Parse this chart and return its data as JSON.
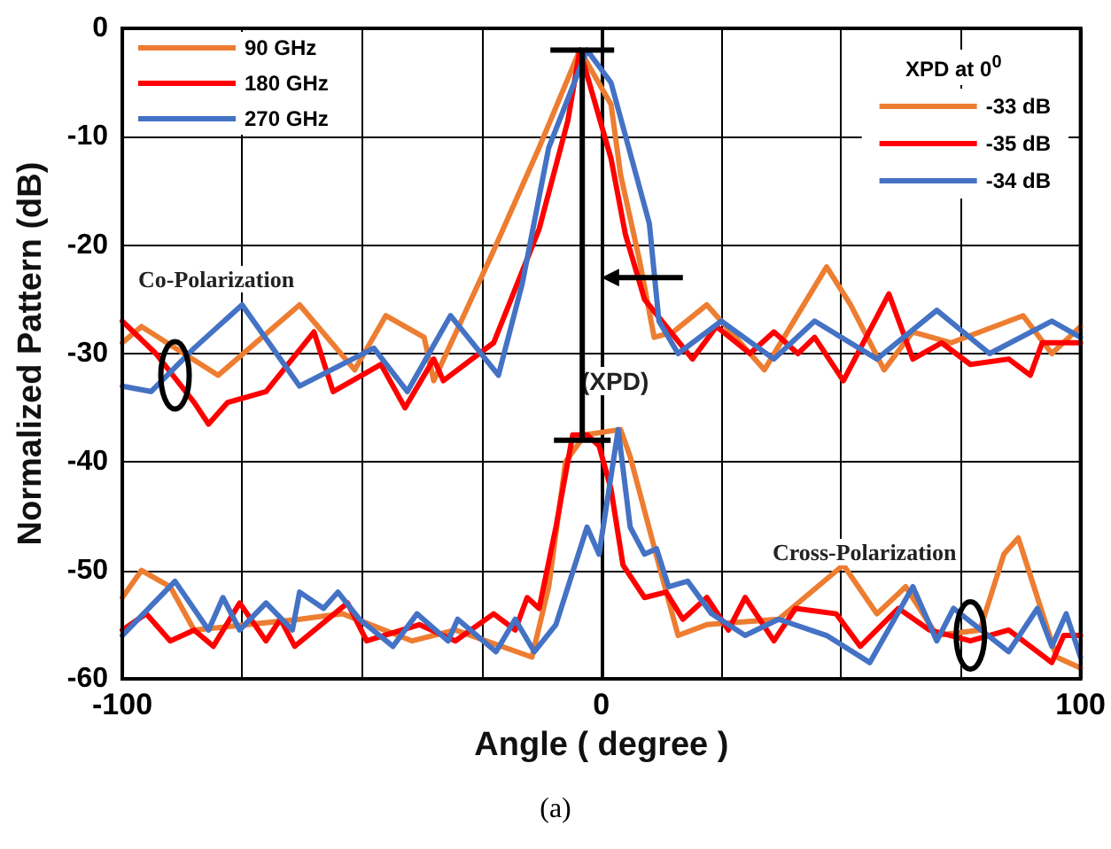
{
  "chart_data": {
    "type": "line",
    "xlabel": "Angle ( degree )",
    "ylabel": "Normalized Pattern (dB)",
    "xlim": [
      -100,
      100
    ],
    "xticks": [
      -100,
      {
        "value": -75,
        "label": null
      },
      {
        "value": -50,
        "label": null
      },
      {
        "value": -25,
        "label": null
      },
      0,
      {
        "value": 25,
        "label": null
      },
      {
        "value": 50,
        "label": null
      },
      {
        "value": 75,
        "label": null
      },
      100
    ],
    "ylim": [
      -60,
      0
    ],
    "yticks": [
      -60,
      -50,
      -40,
      -30,
      -20,
      -10,
      0
    ],
    "grid": true,
    "legend": "top left",
    "legend_title": "XPD at 0$^{0}$",
    "marker": "none",
    "line_style": "solid",
    "series": [
      {
        "name": "90 GHz",
        "color": "#ed7d31",
        "x": [
          -100,
          -96,
          -80,
          -63,
          -51.5,
          -45,
          -37,
          -35,
          -22.5,
          -13,
          -4.5,
          2,
          4,
          8,
          11,
          15,
          22,
          34,
          47,
          52,
          59,
          65,
          73,
          88,
          94,
          100
        ],
        "values": [
          -29,
          -27.5,
          -32,
          -25.5,
          -31.5,
          -26.5,
          -28.5,
          -32.5,
          -20.5,
          -11,
          -2,
          -7,
          -13.5,
          -21.5,
          -28.5,
          -28,
          -25.5,
          -31.5,
          -22,
          -25.5,
          -31.5,
          -28,
          -29,
          -26.5,
          -30,
          -27.5
        ]
      },
      {
        "name": "180 GHz",
        "color": "#ff0000",
        "x": [
          -100,
          -93,
          -85,
          -82,
          -78,
          -70,
          -60,
          -56,
          -46,
          -41,
          -35,
          -33,
          -22.5,
          -13,
          -7,
          -4.5,
          2,
          5,
          9,
          19,
          24,
          31,
          36,
          41,
          44.5,
          50.5,
          60,
          65,
          71,
          77,
          85,
          89.5,
          92,
          100
        ],
        "values": [
          -27,
          -30,
          -34.5,
          -36.5,
          -34.5,
          -33.5,
          -28,
          -33.5,
          -31,
          -35,
          -30.5,
          -32.5,
          -29,
          -18.5,
          -8.5,
          -2,
          -12,
          -19,
          -25,
          -30.5,
          -27.5,
          -30,
          -28,
          -30,
          -28.5,
          -32.5,
          -24.5,
          -30.5,
          -29,
          -31,
          -30.5,
          -32,
          -29,
          -29
        ]
      },
      {
        "name": "270 GHz",
        "color": "#4472c4",
        "x": [
          -100,
          -94,
          -85,
          -75,
          -63,
          -47.5,
          -40.5,
          -31.5,
          -21.5,
          -16.5,
          -11,
          -3,
          2,
          6,
          10,
          12,
          16,
          25,
          36,
          44.5,
          57.5,
          70,
          81,
          94,
          100
        ],
        "values": [
          -33,
          -33.5,
          -29.5,
          -25.5,
          -33,
          -29.5,
          -33.5,
          -26.5,
          -32,
          -23.5,
          -11,
          -2,
          -5,
          -11.5,
          -18,
          -27,
          -30,
          -27,
          -30.5,
          -27,
          -30.5,
          -26,
          -30,
          -27,
          -28.5
        ]
      },
      {
        "name": "-33 dB",
        "color": "#ed7d31",
        "x": [
          -100,
          -96,
          -90,
          -85,
          -63,
          -54,
          -39.5,
          -30.5,
          -14.5,
          -11,
          -7.5,
          -3.5,
          4,
          6,
          12,
          16,
          22,
          37,
          50.5,
          57.5,
          63.5,
          70,
          79,
          84,
          87,
          95,
          100
        ],
        "values": [
          -52.5,
          -50,
          -51.5,
          -55.5,
          -54.5,
          -54,
          -56.5,
          -55.5,
          -58,
          -51.5,
          -40,
          -37.5,
          -37,
          -39.5,
          -49.5,
          -56,
          -55,
          -54.5,
          -49.5,
          -54,
          -51.5,
          -56,
          -55.5,
          -48.5,
          -47,
          -58,
          -59
        ]
      },
      {
        "name": "-35 dB",
        "color": "#ff0000",
        "x": [
          -100,
          -95,
          -90,
          -85,
          -81,
          -75.5,
          -70,
          -67,
          -64,
          -53,
          -49,
          -38,
          -30.5,
          -22.5,
          -18,
          -15.5,
          -13,
          -9.5,
          -6,
          -3,
          -0.5,
          2,
          4.5,
          9,
          13.5,
          17,
          22,
          26.5,
          30,
          36,
          40.5,
          49,
          54,
          62,
          68.5,
          77,
          85,
          94,
          96.5,
          100
        ],
        "values": [
          -55.5,
          -54,
          -56.5,
          -55.5,
          -57,
          -53,
          -56.5,
          -54.5,
          -57,
          -53,
          -56.5,
          -55,
          -56.5,
          -54,
          -55.5,
          -52.5,
          -53.5,
          -46,
          -37.5,
          -37.5,
          -38.5,
          -42.5,
          -49.5,
          -52.5,
          -52,
          -54.5,
          -52.5,
          -55.5,
          -52.5,
          -56.5,
          -53.5,
          -54,
          -57,
          -53.5,
          -55.5,
          -56.5,
          -55.5,
          -58.5,
          -56,
          -56
        ]
      },
      {
        "name": "-34 dB",
        "color": "#4472c4",
        "x": [
          -100,
          -89,
          -82,
          -79,
          -75.5,
          -70,
          -64.5,
          -63,
          -58,
          -55,
          -50.5,
          -43.5,
          -38.5,
          -32,
          -30,
          -22,
          -18,
          -14,
          -9.5,
          -3,
          -0.5,
          3.5,
          6,
          9,
          11.5,
          14,
          18,
          23,
          30,
          37,
          47,
          56,
          65,
          70,
          73.5,
          85,
          91,
          94,
          97,
          100
        ],
        "values": [
          -56,
          -51,
          -55.5,
          -52.5,
          -55.5,
          -53,
          -55.5,
          -52,
          -53.5,
          -52,
          -54.5,
          -57,
          -54,
          -56.5,
          -54.5,
          -57.5,
          -54.5,
          -57.5,
          -55,
          -46,
          -48.5,
          -37,
          -46,
          -48.5,
          -48,
          -51.5,
          -51,
          -54,
          -56,
          -54.5,
          -56,
          -58.5,
          -51.5,
          -56.5,
          -53.5,
          -57.5,
          -53.5,
          -57,
          -54,
          -58
        ]
      }
    ],
    "annotations": [
      "Co-Polarization",
      "Cross-Polarization",
      "(XPD)",
      "(a)"
    ]
  }
}
